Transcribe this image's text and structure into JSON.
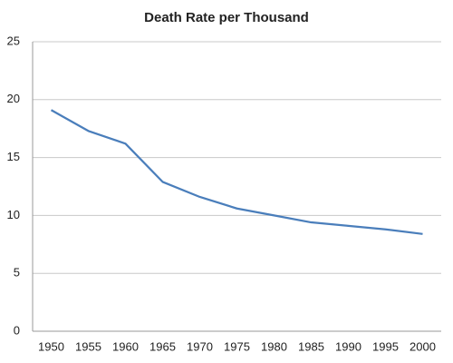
{
  "chart_data": {
    "type": "line",
    "title": "Death Rate per Thousand",
    "categories": [
      "1950",
      "1955",
      "1960",
      "1965",
      "1970",
      "1975",
      "1980",
      "1985",
      "1990",
      "1995",
      "2000"
    ],
    "series": [
      {
        "color": "#4a7ebb",
        "values": [
          19.1,
          17.3,
          16.2,
          12.9,
          11.6,
          10.6,
          10.0,
          9.4,
          9.1,
          8.8,
          8.4
        ]
      }
    ],
    "ylim": [
      0,
      25
    ],
    "yticks": [
      0,
      5,
      10,
      15,
      20,
      25
    ],
    "grid": true
  }
}
